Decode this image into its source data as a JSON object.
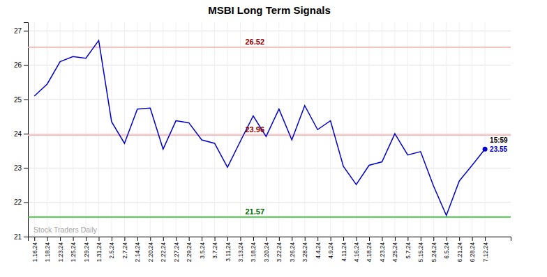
{
  "chart_data": {
    "type": "line",
    "title": "MSBI Long Term Signals",
    "categories": [
      "1.16.24",
      "1.18.24",
      "1.23.24",
      "1.25.24",
      "1.29.24",
      "1.31.24",
      "2.5.24",
      "2.7.24",
      "2.14.24",
      "2.20.24",
      "2.22.24",
      "2.27.24",
      "2.29.24",
      "3.5.24",
      "3.7.24",
      "3.11.24",
      "3.13.24",
      "3.18.24",
      "3.20.24",
      "3.22.24",
      "3.26.24",
      "3.28.24",
      "4.4.24",
      "4.9.24",
      "4.11.24",
      "4.16.24",
      "4.18.24",
      "4.23.24",
      "4.25.24",
      "5.7.24",
      "5.15.24",
      "5.24.24",
      "6.5.24",
      "6.21.24",
      "6.28.24",
      "7.12.24"
    ],
    "values": [
      25.1,
      25.45,
      26.1,
      26.25,
      26.2,
      26.72,
      24.35,
      23.72,
      24.72,
      24.75,
      23.55,
      24.38,
      24.32,
      23.82,
      23.72,
      23.02,
      23.78,
      24.52,
      23.92,
      24.72,
      23.82,
      24.82,
      24.12,
      24.38,
      23.05,
      22.52,
      23.08,
      23.18,
      24.0,
      23.38,
      23.48,
      22.48,
      21.62,
      22.62,
      23.08,
      23.55
    ],
    "color": "#0000cc",
    "ylim": [
      21.0,
      27.25
    ],
    "yticks": [
      21,
      22,
      23,
      24,
      25,
      26,
      27
    ],
    "grid": true,
    "hlines": [
      {
        "value": 26.52,
        "color": "#ffb3b3",
        "label_color": "darkred"
      },
      {
        "value": 23.96,
        "color": "#ffb3b3",
        "label_color": "darkred"
      },
      {
        "value": 21.57,
        "color": "#33cc33",
        "label_color": "darkgreen"
      }
    ],
    "watermark": "Stock Traders Daily",
    "last_label_time": "15:59",
    "last_label_value": 23.55
  }
}
